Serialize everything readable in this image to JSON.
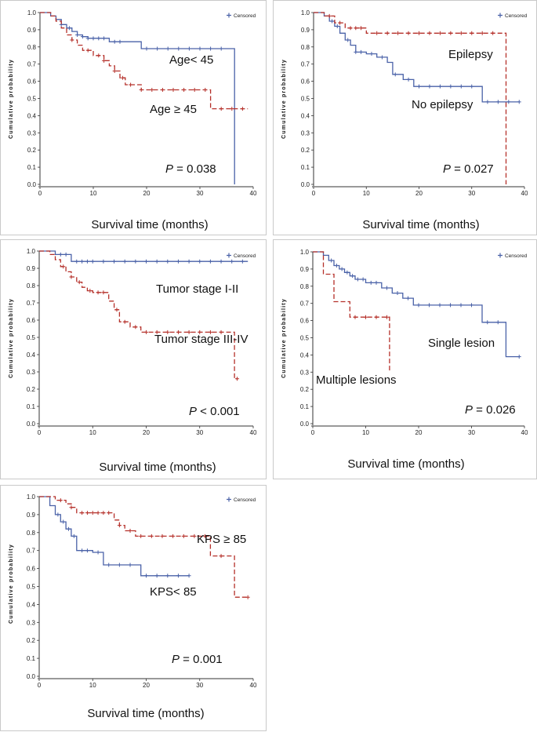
{
  "legend_label": "Censored",
  "colors": {
    "blue": "#4a62a8",
    "red": "#b5302a"
  },
  "chart_data": [
    {
      "type": "line",
      "subtype": "kaplan-meier",
      "ylabel": "Cumulative probability",
      "xlabel": "Survival time (months)",
      "xticks": [
        "0",
        "10",
        "20",
        "30",
        "40"
      ],
      "yticks": [
        "0.0",
        "0.1",
        "0.2",
        "0.3",
        "0.4",
        "0.5",
        "0.6",
        "0.7",
        "0.8",
        "0.9",
        "1.0"
      ],
      "xlim": [
        0,
        40
      ],
      "ylim": [
        0,
        1
      ],
      "p_label": "P",
      "p_text": " = 0.038",
      "series": [
        {
          "name": "Age< 45",
          "color": "blue",
          "style": "solid",
          "x": [
            0,
            2,
            3,
            4,
            5,
            6,
            7,
            8,
            9,
            13,
            19,
            36.5,
            36.5
          ],
          "y": [
            1.0,
            0.98,
            0.96,
            0.93,
            0.91,
            0.89,
            0.87,
            0.86,
            0.85,
            0.83,
            0.79,
            0.79,
            0.0
          ],
          "censors": [
            4,
            5.5,
            7,
            8,
            9,
            10,
            11,
            12,
            14,
            15,
            20,
            22,
            24,
            26,
            28,
            30,
            32,
            34
          ]
        },
        {
          "name": "Age ≥ 45",
          "color": "red",
          "style": "dashed",
          "x": [
            0,
            2,
            3,
            4,
            5,
            6,
            7,
            8,
            10,
            12,
            13,
            14,
            15,
            16,
            19,
            32,
            32,
            39
          ],
          "y": [
            1.0,
            0.98,
            0.95,
            0.91,
            0.87,
            0.84,
            0.81,
            0.78,
            0.75,
            0.72,
            0.69,
            0.66,
            0.62,
            0.58,
            0.55,
            0.55,
            0.44,
            0.44
          ],
          "censors": [
            6,
            9,
            11,
            12,
            14,
            15.5,
            17,
            19,
            21,
            23,
            25,
            27,
            29,
            31,
            34,
            36,
            38
          ]
        }
      ],
      "annotations": [
        "Age< 45",
        "Age ≥ 45"
      ]
    },
    {
      "type": "line",
      "subtype": "kaplan-meier",
      "ylabel": "Cumulative probability",
      "xlabel": "Survival time (months)",
      "xticks": [
        "0",
        "10",
        "20",
        "30",
        "40"
      ],
      "yticks": [
        "0.0",
        "0.1",
        "0.2",
        "0.3",
        "0.4",
        "0.5",
        "0.6",
        "0.7",
        "0.8",
        "0.9",
        "1.0"
      ],
      "xlim": [
        0,
        40
      ],
      "ylim": [
        0,
        1
      ],
      "p_label": "P",
      "p_text": " = 0.027",
      "series": [
        {
          "name": "No epilepsy",
          "color": "blue",
          "style": "solid",
          "x": [
            0,
            2,
            3,
            4,
            5,
            6,
            7,
            8,
            10,
            12,
            14,
            15,
            17,
            19,
            32,
            32,
            39
          ],
          "y": [
            1.0,
            0.98,
            0.95,
            0.92,
            0.88,
            0.84,
            0.81,
            0.77,
            0.76,
            0.74,
            0.71,
            0.64,
            0.61,
            0.57,
            0.57,
            0.48,
            0.48
          ],
          "censors": [
            3.5,
            4.5,
            6.5,
            8,
            9,
            11,
            13,
            15.5,
            18,
            20,
            22,
            24,
            26,
            28,
            30,
            33,
            35,
            37,
            39
          ]
        },
        {
          "name": "Epilepsy",
          "color": "red",
          "style": "dashed",
          "x": [
            0,
            2,
            4,
            6,
            10,
            36.5,
            36.5
          ],
          "y": [
            1.0,
            0.98,
            0.94,
            0.91,
            0.88,
            0.88,
            0.0
          ],
          "censors": [
            3,
            5,
            7,
            8,
            9,
            12,
            14,
            16,
            18,
            20,
            22,
            24,
            26,
            28,
            30,
            32,
            34
          ]
        }
      ],
      "annotations": [
        "Epilepsy",
        "No epilepsy"
      ]
    },
    {
      "type": "line",
      "subtype": "kaplan-meier",
      "ylabel": "Cumulative probability",
      "xlabel": "Survival time (months)",
      "xticks": [
        "0",
        "10",
        "20",
        "30",
        "40"
      ],
      "yticks": [
        "0.0",
        "0.1",
        "0.2",
        "0.3",
        "0.4",
        "0.5",
        "0.6",
        "0.7",
        "0.8",
        "0.9",
        "1.0"
      ],
      "xlim": [
        0,
        40
      ],
      "ylim": [
        0,
        1
      ],
      "p_label": "P",
      "p_text": " < 0.001",
      "series": [
        {
          "name": "Tumor stage I-II",
          "color": "blue",
          "style": "solid",
          "x": [
            0,
            3,
            6,
            39
          ],
          "y": [
            1.0,
            0.98,
            0.94,
            0.94
          ],
          "censors": [
            4,
            5,
            7,
            8,
            9,
            10,
            12,
            14,
            16,
            18,
            20,
            22,
            24,
            26,
            28,
            30,
            32,
            34,
            36,
            38
          ]
        },
        {
          "name": "Tumor stage III-IV",
          "color": "red",
          "style": "dashed",
          "x": [
            0,
            2,
            3,
            4,
            5,
            6,
            7,
            8,
            9,
            10,
            13,
            14,
            15,
            17,
            19,
            36.5,
            36.5,
            37
          ],
          "y": [
            1.0,
            0.98,
            0.95,
            0.91,
            0.88,
            0.85,
            0.82,
            0.79,
            0.77,
            0.76,
            0.71,
            0.66,
            0.59,
            0.56,
            0.53,
            0.53,
            0.26,
            0.26
          ],
          "censors": [
            4.5,
            6,
            7.5,
            9.5,
            11,
            12,
            14.5,
            16,
            18,
            20,
            22,
            24,
            26,
            28,
            30,
            32,
            34,
            37
          ]
        }
      ],
      "annotations": [
        "Tumor stage I-II",
        "Tumor stage III-IV"
      ]
    },
    {
      "type": "line",
      "subtype": "kaplan-meier",
      "ylabel": "Cumulative probability",
      "xlabel": "Survival time (months)",
      "xticks": [
        "0",
        "10",
        "20",
        "30",
        "40"
      ],
      "yticks": [
        "0.0",
        "0.1",
        "0.2",
        "0.3",
        "0.4",
        "0.5",
        "0.6",
        "0.7",
        "0.8",
        "0.9",
        "1.0"
      ],
      "xlim": [
        0,
        40
      ],
      "ylim": [
        0,
        1
      ],
      "p_label": "P",
      "p_text": " = 0.026",
      "series": [
        {
          "name": "Single lesion",
          "color": "blue",
          "style": "solid",
          "x": [
            0,
            2,
            3,
            4,
            5,
            6,
            7,
            8,
            10,
            13,
            15,
            17,
            19,
            32,
            32,
            36.5,
            36.5,
            39
          ],
          "y": [
            1.0,
            0.98,
            0.95,
            0.92,
            0.9,
            0.88,
            0.86,
            0.84,
            0.82,
            0.79,
            0.76,
            0.73,
            0.69,
            0.69,
            0.59,
            0.59,
            0.39,
            0.39
          ],
          "censors": [
            3.5,
            4.5,
            5.5,
            6.5,
            7.5,
            8.5,
            9.5,
            11,
            12,
            14,
            16,
            18,
            20,
            22,
            24,
            26,
            28,
            30,
            33,
            35,
            39
          ]
        },
        {
          "name": "Multiple lesions",
          "color": "red",
          "style": "dashed",
          "x": [
            0,
            2,
            2,
            4,
            4,
            7,
            7,
            14.5,
            14.5
          ],
          "y": [
            1.0,
            1.0,
            0.87,
            0.87,
            0.71,
            0.71,
            0.62,
            0.62,
            0.31
          ],
          "censors": [
            8,
            10,
            12,
            14
          ]
        }
      ],
      "annotations": [
        "Single lesion",
        "Multiple lesions"
      ]
    },
    {
      "type": "line",
      "subtype": "kaplan-meier",
      "ylabel": "Cumulative probability",
      "xlabel": "Survival time (months)",
      "xticks": [
        "0",
        "10",
        "20",
        "30",
        "40"
      ],
      "yticks": [
        "0.0",
        "0.1",
        "0.2",
        "0.3",
        "0.4",
        "0.5",
        "0.6",
        "0.7",
        "0.8",
        "0.9",
        "1.0"
      ],
      "xlim": [
        0,
        40
      ],
      "ylim": [
        0,
        1
      ],
      "p_label": "P",
      "p_text": " = 0.001",
      "series": [
        {
          "name": "KPS< 85",
          "color": "blue",
          "style": "solid",
          "x": [
            0,
            2,
            3,
            4,
            5,
            6,
            7,
            10,
            12,
            19,
            28
          ],
          "y": [
            1.0,
            0.95,
            0.9,
            0.86,
            0.82,
            0.78,
            0.7,
            0.69,
            0.62,
            0.56,
            0.56
          ],
          "censors": [
            3.5,
            4.5,
            5.5,
            6.5,
            8,
            9,
            11,
            13,
            15,
            17,
            20,
            22,
            24,
            26,
            28
          ]
        },
        {
          "name": "KPS ≥ 85",
          "color": "red",
          "style": "dashed",
          "x": [
            0,
            3,
            5,
            6,
            7,
            14,
            15,
            16,
            18,
            32,
            32,
            36.5,
            36.5,
            39
          ],
          "y": [
            1.0,
            0.98,
            0.96,
            0.94,
            0.91,
            0.87,
            0.84,
            0.81,
            0.78,
            0.78,
            0.67,
            0.67,
            0.44,
            0.44
          ],
          "censors": [
            4,
            6,
            8,
            9,
            10,
            11,
            12,
            13,
            15,
            17,
            19,
            21,
            23,
            25,
            27,
            29,
            31,
            34,
            39
          ]
        }
      ],
      "annotations": [
        "KPS ≥ 85",
        "KPS< 85"
      ]
    }
  ]
}
